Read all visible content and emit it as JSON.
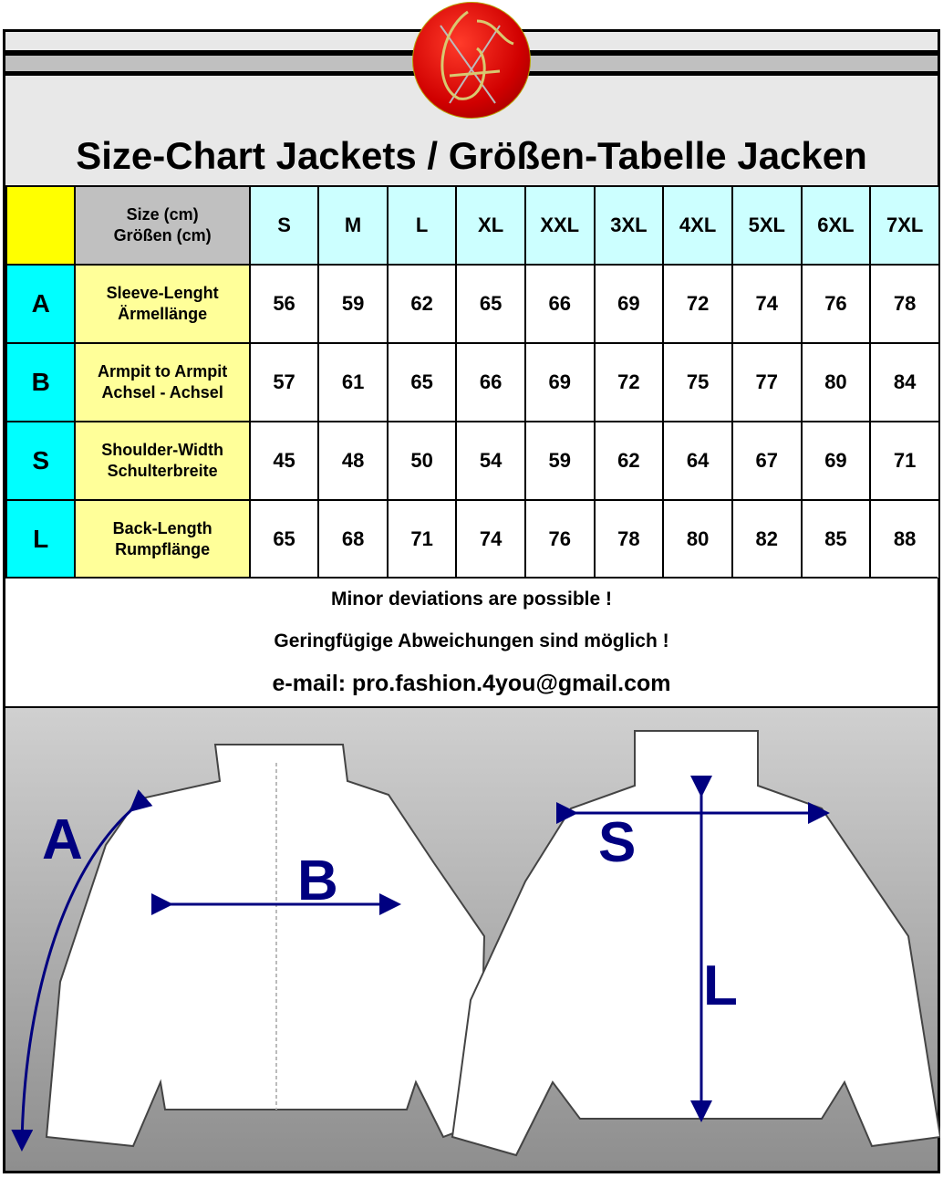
{
  "title": "Size-Chart Jackets / Größen-Tabelle Jacken",
  "logo": {
    "name": "brand-logo",
    "text": "PF"
  },
  "table": {
    "header_label": [
      "Size (cm)",
      "Größen (cm)"
    ],
    "sizes": [
      "S",
      "M",
      "L",
      "XL",
      "XXL",
      "3XL",
      "4XL",
      "5XL",
      "6XL",
      "7XL"
    ],
    "rows": [
      {
        "letter": "A",
        "label": [
          "Sleeve-Lenght",
          "Ärmellänge"
        ],
        "values": [
          "56",
          "59",
          "62",
          "65",
          "66",
          "69",
          "72",
          "74",
          "76",
          "78"
        ]
      },
      {
        "letter": "B",
        "label": [
          "Armpit to Armpit",
          "Achsel - Achsel"
        ],
        "values": [
          "57",
          "61",
          "65",
          "66",
          "69",
          "72",
          "75",
          "77",
          "80",
          "84"
        ]
      },
      {
        "letter": "S",
        "label": [
          "Shoulder-Width",
          "Schulterbreite"
        ],
        "values": [
          "45",
          "48",
          "50",
          "54",
          "59",
          "62",
          "64",
          "67",
          "69",
          "71"
        ]
      },
      {
        "letter": "L",
        "label": [
          "Back-Length",
          "Rumpflänge"
        ],
        "values": [
          "65",
          "68",
          "71",
          "74",
          "76",
          "78",
          "80",
          "82",
          "85",
          "88"
        ]
      }
    ]
  },
  "notes": [
    "Minor deviations are possible !",
    "Geringfügige Abweichungen sind möglich !",
    "e-mail: pro.fashion.4you@gmail.com"
  ],
  "diagram": {
    "labels": {
      "a": "A",
      "b": "B",
      "s": "S",
      "l": "L"
    }
  },
  "colors": {
    "yellow": "#ffff00",
    "cyan": "#00ffff",
    "light_cyan": "#ccffff",
    "light_yellow": "#ffff99",
    "gray": "#c0c0c0",
    "arrow": "#000080",
    "logo_red": "#e00000"
  }
}
